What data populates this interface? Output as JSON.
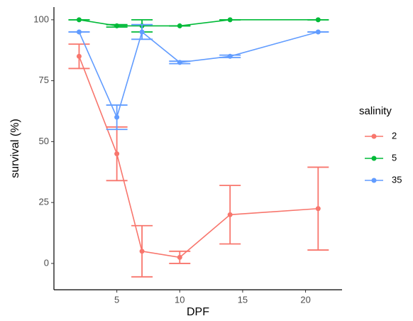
{
  "chart_data": {
    "type": "line",
    "x_label": "DPF",
    "y_label": "survival (%)",
    "x": [
      2,
      5,
      7,
      10,
      14,
      21
    ],
    "xlim": [
      0,
      22.9
    ],
    "xticks": [
      5,
      10,
      15,
      20
    ],
    "ylim": [
      -10.8,
      105.2
    ],
    "yticks": [
      0,
      25,
      50,
      75,
      100
    ],
    "grid": false,
    "legend_title": "salinity",
    "legend_position": "right",
    "series": [
      {
        "name": "2",
        "color": "#F8766D",
        "values": [
          85,
          45,
          5,
          2.5,
          20,
          22.5
        ],
        "errors": [
          5,
          11,
          10.5,
          2.5,
          12,
          17
        ]
      },
      {
        "name": "5",
        "color": "#00BA38",
        "values": [
          100,
          97.5,
          97.5,
          97.5,
          100,
          100
        ],
        "errors": [
          0,
          0.5,
          2.5,
          0,
          0,
          0
        ]
      },
      {
        "name": "35",
        "color": "#619CFF",
        "values": [
          95,
          60,
          95,
          82.5,
          85,
          95
        ],
        "errors": [
          0,
          5,
          3,
          0.5,
          0.5,
          0
        ]
      }
    ]
  }
}
